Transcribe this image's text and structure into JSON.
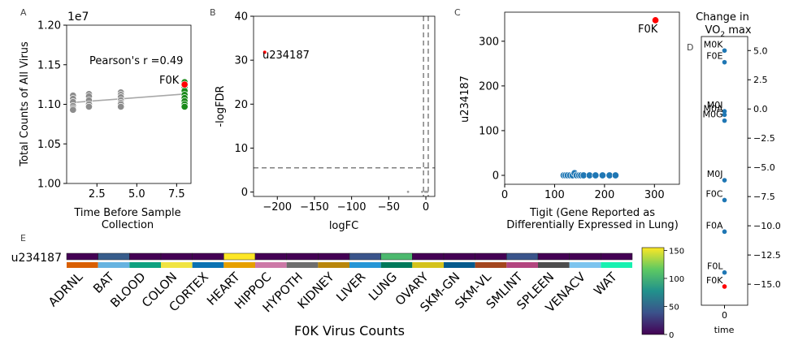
{
  "panel_letters": {
    "A": "A",
    "B": "B",
    "C": "C",
    "D": "D",
    "E": "E"
  },
  "chart_data": [
    {
      "id": "A",
      "type": "scatter",
      "xlabel": "Time Before Sample\nCollection",
      "ylabel": "Total Counts of All Virus",
      "offset_text": "1e7",
      "xlim": [
        0.6,
        8.4
      ],
      "ylim": [
        1.0,
        1.2
      ],
      "xticks": [
        2.5,
        5.0,
        7.5
      ],
      "xtick_labels": [
        "2.5",
        "5.0",
        "7.5"
      ],
      "yticks": [
        1.0,
        1.05,
        1.1,
        1.15,
        1.2
      ],
      "ytick_labels": [
        "1.00",
        "1.05",
        "1.10",
        "1.15",
        "1.20"
      ],
      "annotation": "Pearson's r =0.49",
      "highlight_label": "F0K",
      "colors": {
        "grey": "#8c8c8c",
        "green": "#1a8a1a",
        "red": "#ff0000",
        "fit": "#a8a8a8"
      },
      "fit_line": {
        "x": [
          0.8,
          8.0
        ],
        "y": [
          1.102,
          1.113
        ]
      },
      "series": [
        {
          "group": "grey",
          "x": [
            1,
            1,
            1,
            1,
            1,
            1,
            2,
            2,
            2,
            2,
            2,
            4,
            4,
            4,
            4,
            4,
            4,
            4
          ],
          "y": [
            1.111,
            1.107,
            1.103,
            1.098,
            1.095,
            1.093,
            1.113,
            1.11,
            1.105,
            1.1,
            1.097,
            1.115,
            1.112,
            1.109,
            1.105,
            1.102,
            1.1,
            1.097
          ]
        },
        {
          "group": "green",
          "x": [
            8,
            8,
            8,
            8,
            8,
            8,
            8,
            8
          ],
          "y": [
            1.128,
            1.122,
            1.117,
            1.112,
            1.108,
            1.104,
            1.1,
            1.097
          ]
        },
        {
          "group": "red",
          "x": [
            8
          ],
          "y": [
            1.125
          ]
        }
      ]
    },
    {
      "id": "B",
      "type": "scatter",
      "xlabel": "logFC",
      "ylabel": "-logFDR",
      "xlim": [
        -232,
        12
      ],
      "ylim": [
        -1,
        40
      ],
      "xticks": [
        -200,
        -150,
        -100,
        -50,
        0
      ],
      "xtick_labels": [
        "−200",
        "−150",
        "−100",
        "−50",
        "0"
      ],
      "yticks": [
        0,
        10,
        20,
        30,
        40
      ],
      "ytick_labels": [
        "0",
        "10",
        "20",
        "30",
        "40"
      ],
      "hline": 5.5,
      "vlines": [
        -1,
        1
      ],
      "label": "u234187",
      "colors": {
        "red": "#ff0000",
        "grey": "#a0a0a0",
        "dash": "#808080"
      },
      "points": [
        {
          "x": -217,
          "y": 31.8,
          "group": "red"
        },
        {
          "x": -24,
          "y": 0.05,
          "group": "grey"
        },
        {
          "x": -5,
          "y": 0.05,
          "group": "grey"
        },
        {
          "x": -1,
          "y": 0.05,
          "group": "grey"
        },
        {
          "x": 1,
          "y": 0.05,
          "group": "grey"
        },
        {
          "x": 2,
          "y": 0.05,
          "group": "grey"
        }
      ]
    },
    {
      "id": "C",
      "type": "scatter",
      "xlabel": "Tigit (Gene Reported as\nDifferentially Expressed in Lung)",
      "ylabel": "u234187",
      "xlim": [
        0,
        350
      ],
      "ylim": [
        -20,
        365
      ],
      "xticks": [
        0,
        100,
        200,
        300
      ],
      "xtick_labels": [
        "0",
        "100",
        "200",
        "300"
      ],
      "yticks": [
        0,
        100,
        200,
        300
      ],
      "ytick_labels": [
        "0",
        "100",
        "200",
        "300"
      ],
      "highlight_label": "F0K",
      "colors": {
        "blue": "#1f77b4",
        "red": "#ff0000"
      },
      "points": [
        {
          "x": 118,
          "y": 0,
          "group": "blue"
        },
        {
          "x": 122,
          "y": 0,
          "group": "blue"
        },
        {
          "x": 126,
          "y": 0,
          "group": "blue"
        },
        {
          "x": 131,
          "y": 0,
          "group": "blue"
        },
        {
          "x": 136,
          "y": 0,
          "group": "blue"
        },
        {
          "x": 140,
          "y": 5,
          "group": "blue"
        },
        {
          "x": 144,
          "y": 0,
          "group": "blue"
        },
        {
          "x": 149,
          "y": 0,
          "group": "blue"
        },
        {
          "x": 153,
          "y": 0,
          "group": "blue"
        },
        {
          "x": 158,
          "y": 0,
          "group": "blue"
        },
        {
          "x": 170,
          "y": 0,
          "group": "blue"
        },
        {
          "x": 182,
          "y": 0,
          "group": "blue"
        },
        {
          "x": 196,
          "y": 0,
          "group": "blue"
        },
        {
          "x": 210,
          "y": 0,
          "group": "blue"
        },
        {
          "x": 222,
          "y": 0,
          "group": "blue"
        },
        {
          "x": 302,
          "y": 347,
          "group": "red"
        }
      ]
    },
    {
      "id": "D",
      "type": "scatter",
      "title": "Change in\nVO2 max",
      "xlabel": "time",
      "xlim": [
        -1,
        1
      ],
      "ylim": [
        -16.8,
        6.2
      ],
      "xticks": [
        0
      ],
      "xtick_labels": [
        "0"
      ],
      "yticks": [
        5.0,
        2.5,
        0.0,
        -2.5,
        -5.0,
        -7.5,
        -10.0,
        -12.5,
        -15.0
      ],
      "ytick_labels": [
        "5.0",
        "2.5",
        "0.0",
        "−2.5",
        "−5.0",
        "−7.5",
        "−10.0",
        "−12.5",
        "−15.0"
      ],
      "colors": {
        "blue": "#1f77b4",
        "red": "#ff0000"
      },
      "points": [
        {
          "label": "M0K",
          "y": 5.0,
          "group": "blue"
        },
        {
          "label": "F0E",
          "y": 4.0,
          "group": "blue"
        },
        {
          "label": "M0I",
          "y": -0.2,
          "group": "blue"
        },
        {
          "label": "M0A",
          "y": -0.5,
          "group": "blue"
        },
        {
          "label": "M0G",
          "y": -1.0,
          "group": "blue"
        },
        {
          "label": "M0J",
          "y": -6.1,
          "group": "blue"
        },
        {
          "label": "F0C",
          "y": -7.8,
          "group": "blue"
        },
        {
          "label": "F0A",
          "y": -10.5,
          "group": "blue"
        },
        {
          "label": "F0L",
          "y": -14.0,
          "group": "blue"
        },
        {
          "label": "F0K",
          "y": -15.2,
          "group": "red"
        }
      ]
    },
    {
      "id": "E",
      "type": "heatmap",
      "xlabel": "F0K Virus Counts",
      "row_label": "u234187",
      "categories": [
        "ADRNL",
        "BAT",
        "BLOOD",
        "COLON",
        "CORTEX",
        "HEART",
        "HIPPOC",
        "HYPOTH",
        "KIDNEY",
        "LIVER",
        "LUNG",
        "OVARY",
        "SKM-GN",
        "SKM-VL",
        "SMLINT",
        "SPLEEN",
        "VENACV",
        "WAT"
      ],
      "values": [
        0,
        45,
        0,
        0,
        0,
        155,
        0,
        0,
        0,
        40,
        105,
        0,
        0,
        0,
        40,
        0,
        0,
        0
      ],
      "tissue_colors": [
        "#d95f02",
        "#66b3e0",
        "#0ea17f",
        "#f0e442",
        "#0a72b2",
        "#e69f00",
        "#cc79a7",
        "#6e6e6e",
        "#b8860b",
        "#2596d6",
        "#00785a",
        "#d4c31c",
        "#055a8c",
        "#a3461e",
        "#b3457f",
        "#4d4d4d",
        "#7cc4ee",
        "#17f1b0"
      ],
      "colorbar": {
        "min": 0,
        "max": 155,
        "ticks": [
          0,
          50,
          100,
          150
        ],
        "tick_labels": [
          "0",
          "50",
          "100",
          "150"
        ]
      }
    }
  ]
}
